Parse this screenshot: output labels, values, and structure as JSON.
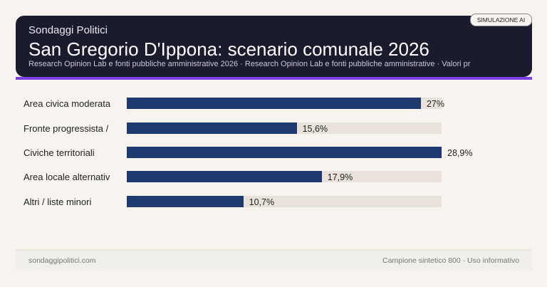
{
  "header": {
    "kicker": "Sondaggi Politici",
    "title": "San Gregorio D'Ippona: scenario comunale 2026",
    "subtitle": "Research Opinion Lab e fonti pubbliche amministrative 2026 · Research Opinion Lab e fonti pubbliche amministrative · Valori pr",
    "badge": "SIMULAZIONE AI"
  },
  "colors": {
    "bar": "#1f3a6e",
    "track": "#e8e2db",
    "accent": "#7b3fe4",
    "header_bg": "#1b1b2e"
  },
  "chart_data": {
    "type": "bar",
    "orientation": "horizontal",
    "categories": [
      "Area civica moderata",
      "Fronte progressista /",
      "Civiche territoriali",
      "Area locale alternativ",
      "Altri / liste minori"
    ],
    "values": [
      27,
      15.6,
      28.9,
      17.9,
      10.7
    ],
    "value_labels": [
      "27%",
      "15,6%",
      "28,9%",
      "17,9%",
      "10,7%"
    ],
    "xlim": [
      0,
      28.9
    ],
    "grid": false
  },
  "footer": {
    "left": "sondaggipolitici.com",
    "right": "Campione sintetico 800 · Uso informativo"
  }
}
